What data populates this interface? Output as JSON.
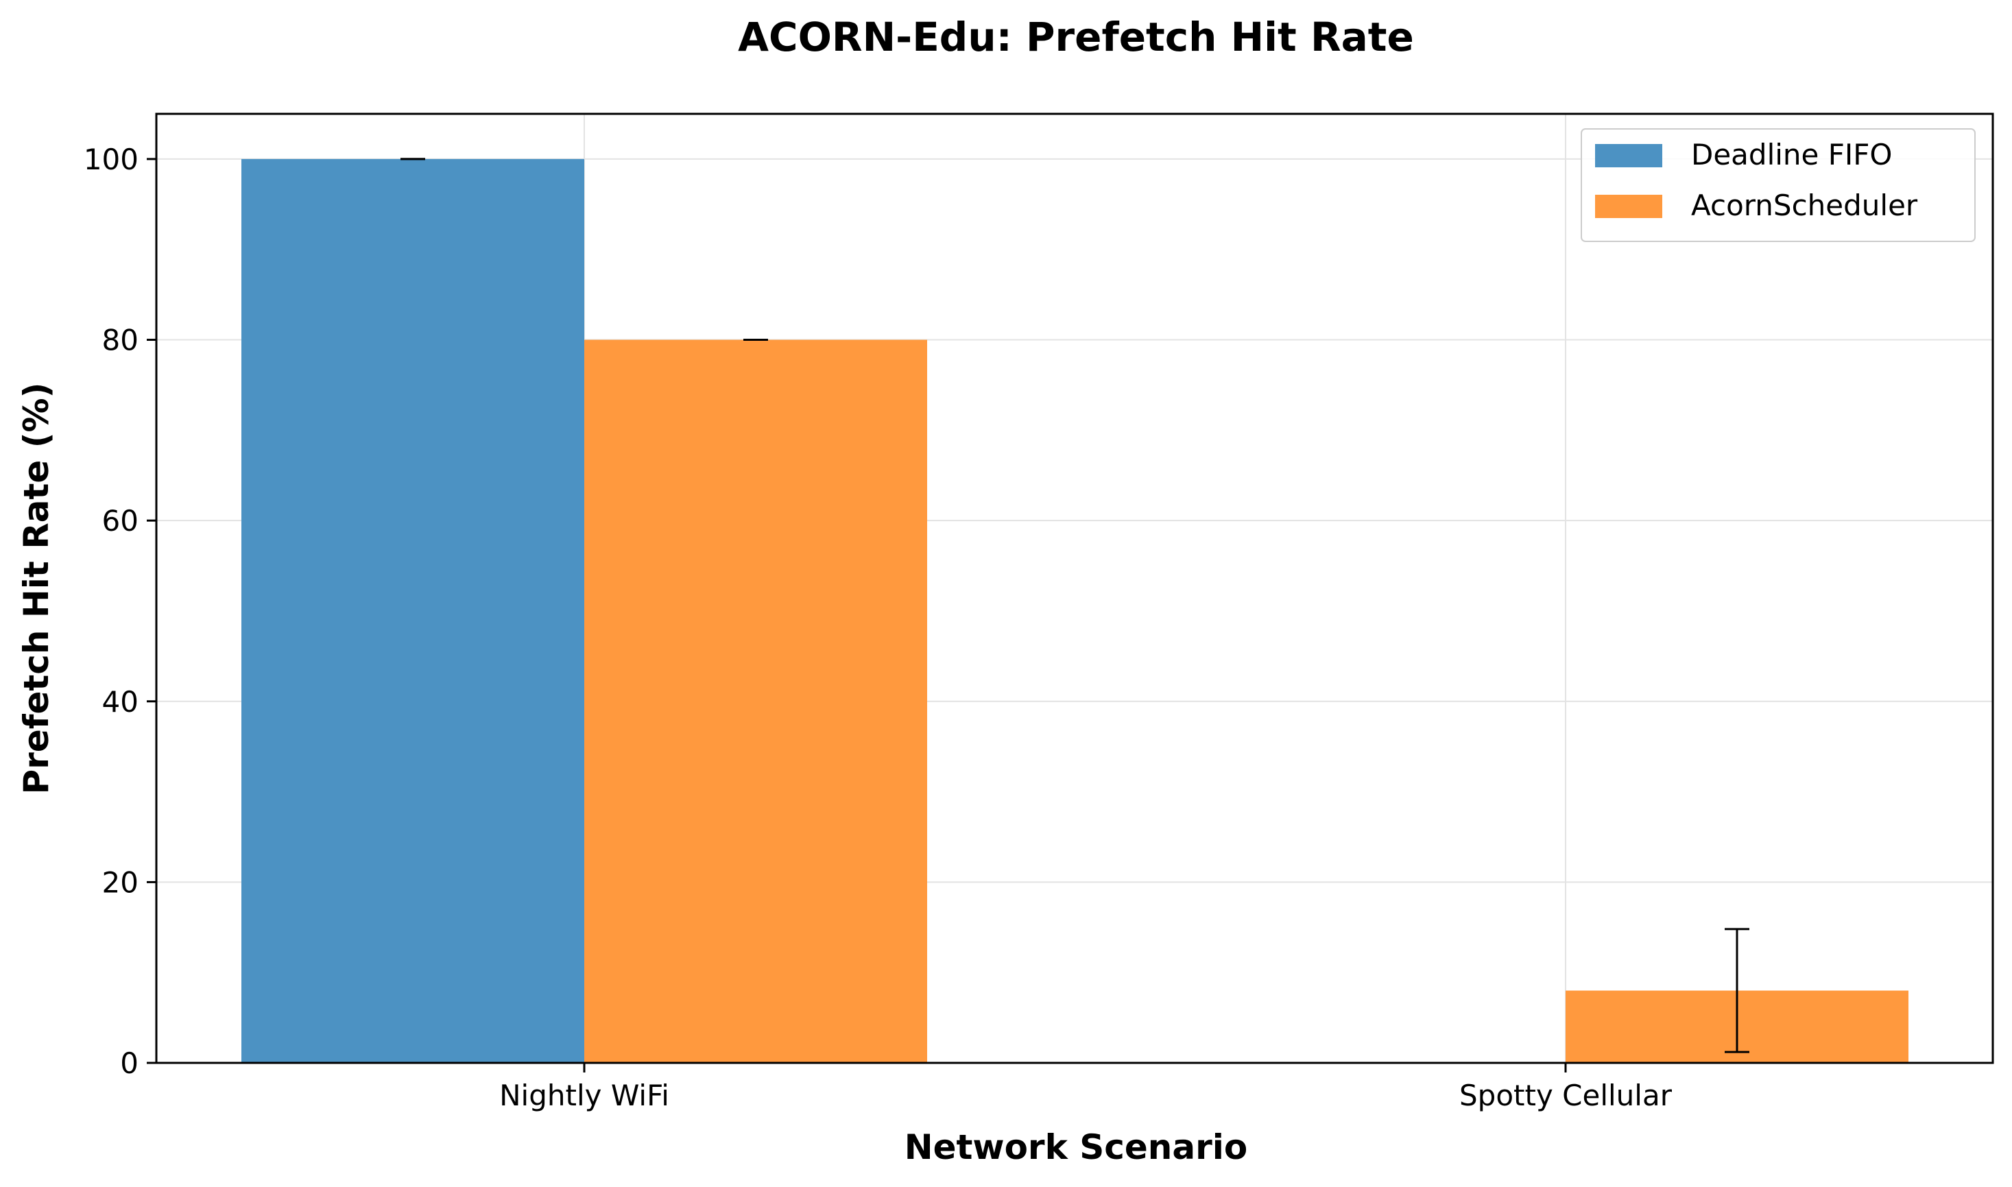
{
  "chart_data": {
    "type": "bar",
    "title": "ACORN-Edu: Prefetch Hit Rate",
    "xlabel": "Network Scenario",
    "ylabel": "Prefetch Hit Rate (%)",
    "categories": [
      "Nightly WiFi",
      "Spotty Cellular"
    ],
    "series": [
      {
        "name": "Deadline FIFO",
        "color": "#4c92c3",
        "values": [
          100,
          0
        ],
        "errors": [
          0,
          0
        ]
      },
      {
        "name": "AcornScheduler",
        "color": "#ff993e",
        "values": [
          80,
          8
        ],
        "errors": [
          0,
          6.8
        ]
      }
    ],
    "ylim": [
      0,
      105
    ],
    "yticks": [
      0,
      20,
      40,
      60,
      80,
      100
    ],
    "grid": true,
    "legend_position": "top-right"
  }
}
